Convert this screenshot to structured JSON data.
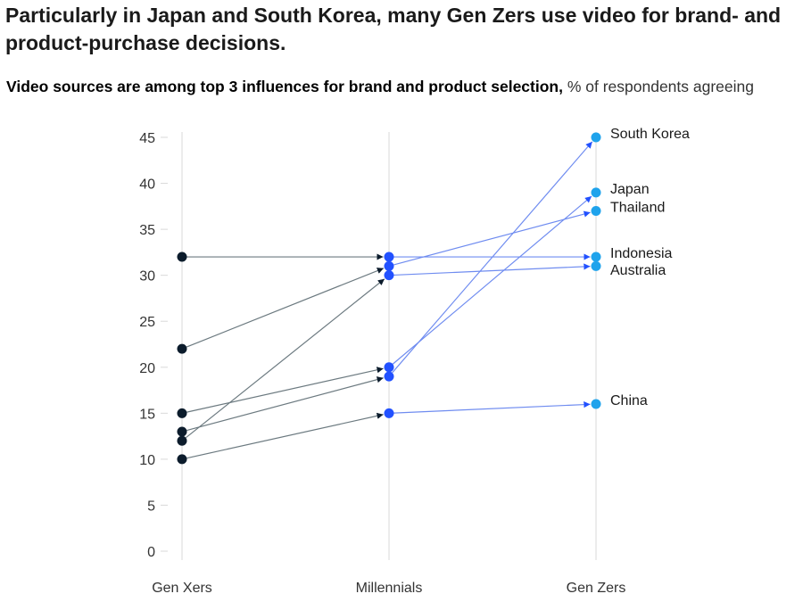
{
  "header": {
    "title": "Particularly in Japan and South Korea, many Gen Zers use video for brand- and product-purchase decisions.",
    "subtitle_bold": "Video sources are among top 3 influences for brand and product selection,",
    "subtitle_light": " % of respondents agreeing"
  },
  "chart_data": {
    "type": "line",
    "title": "Video sources are among top 3 influences for brand and product selection",
    "unit": "% of respondents agreeing",
    "categories": [
      "Gen Xers",
      "Millennials",
      "Gen Zers"
    ],
    "yticks": [
      0,
      5,
      10,
      15,
      20,
      25,
      30,
      35,
      40,
      45
    ],
    "ylim": [
      0,
      45
    ],
    "grid": "vertical lines at each generation",
    "legend": "direct labels at right of Gen Zers points",
    "series": [
      {
        "name": "South Korea",
        "values": [
          13,
          19,
          45
        ]
      },
      {
        "name": "Japan",
        "values": [
          15,
          20,
          39
        ]
      },
      {
        "name": "Thailand",
        "values": [
          22,
          31,
          37
        ]
      },
      {
        "name": "Indonesia",
        "values": [
          32,
          32,
          32
        ]
      },
      {
        "name": "Australia",
        "values": [
          12,
          30,
          31
        ]
      },
      {
        "name": "China",
        "values": [
          10,
          15,
          16
        ]
      }
    ],
    "colors": {
      "genx_dot": "#0c1c2c",
      "millennial_dot": "#2251ff",
      "genz_dot": "#1fa3ec",
      "genx_line": "#6c7a80",
      "later_line": "#6f8cf0",
      "axis_text": "#333333",
      "gridline": "#d9d9d9"
    }
  }
}
